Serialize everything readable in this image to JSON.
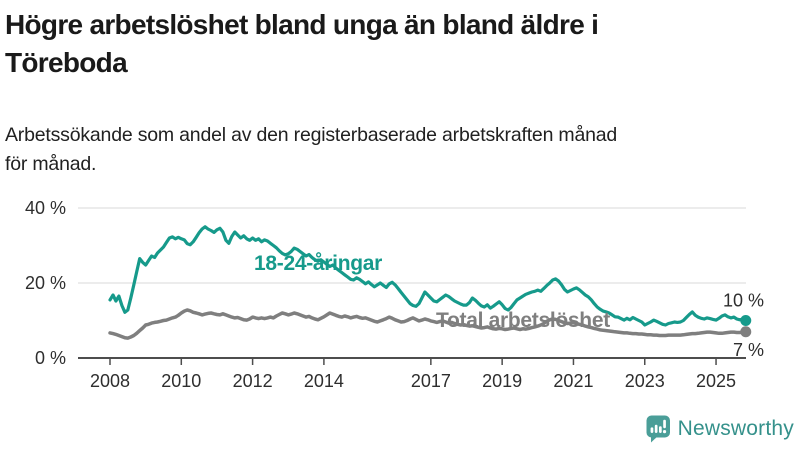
{
  "title": {
    "line1": "Högre arbetslöshet bland unga än bland äldre i",
    "line2": "Töreboda"
  },
  "subtitle": {
    "line1": "Arbetssökande som andel av den registerbaserade arbetskraften månad",
    "line2": "för månad."
  },
  "colors": {
    "young_teal": "#169a8b",
    "total_gray": "#7f7f7f",
    "axis_text": "#2e2e2e",
    "gridline": "#d8d8d8",
    "axis_line": "#4d4d4d",
    "logo_icon": "#4a9e98",
    "logo_text": "#35918b"
  },
  "chart_data": {
    "type": "line",
    "x_unit": "month",
    "x_start": "2008-01",
    "x_end": "2025-11",
    "ylim": [
      0,
      40
    ],
    "grid": "horizontal",
    "yticks": [
      {
        "value": 0,
        "label": "0 %"
      },
      {
        "value": 20,
        "label": "20 %"
      },
      {
        "value": 40,
        "label": "40 %"
      }
    ],
    "xticks": [
      {
        "year": 2008,
        "label": "2008"
      },
      {
        "year": 2010,
        "label": "2010"
      },
      {
        "year": 2012,
        "label": "2012"
      },
      {
        "year": 2014,
        "label": "2014"
      },
      {
        "year": 2017,
        "label": "2017"
      },
      {
        "year": 2019,
        "label": "2019"
      },
      {
        "year": 2021,
        "label": "2021"
      },
      {
        "year": 2023,
        "label": "2023"
      },
      {
        "year": 2025,
        "label": "2025"
      }
    ],
    "series": [
      {
        "id": "young",
        "name": "18-24-åringar",
        "color": "#169a8b",
        "end_label": "10 %",
        "end_label_side": "above",
        "values": [
          15.5,
          16.8,
          15.2,
          16.5,
          14.0,
          12.2,
          12.8,
          16.0,
          19.5,
          23.0,
          26.5,
          25.5,
          24.8,
          26.0,
          27.2,
          26.8,
          28.0,
          28.8,
          29.6,
          30.8,
          32.0,
          32.3,
          31.8,
          32.2,
          31.8,
          31.5,
          30.5,
          30.2,
          31.0,
          32.2,
          33.4,
          34.4,
          35.0,
          34.4,
          34.0,
          33.5,
          34.2,
          34.6,
          33.6,
          31.4,
          30.6,
          32.4,
          33.6,
          32.8,
          32.0,
          32.6,
          31.8,
          31.4,
          32.0,
          31.4,
          31.8,
          31.0,
          31.5,
          31.2,
          30.6,
          30.0,
          29.4,
          28.6,
          27.9,
          27.5,
          27.8,
          28.4,
          29.3,
          29.0,
          28.4,
          27.8,
          27.2,
          27.6,
          26.8,
          26.2,
          25.8,
          26.2,
          25.6,
          25.0,
          24.4,
          24.8,
          24.0,
          23.4,
          22.8,
          22.2,
          21.6,
          21.0,
          20.8,
          21.4,
          21.0,
          20.4,
          19.8,
          20.3,
          19.6,
          19.0,
          19.5,
          20.0,
          19.4,
          18.8,
          19.8,
          20.2,
          19.5,
          18.5,
          17.5,
          16.5,
          15.5,
          14.5,
          14.0,
          13.8,
          14.5,
          16.0,
          17.6,
          16.8,
          16.0,
          15.2,
          15.0,
          15.6,
          16.2,
          16.8,
          16.4,
          15.8,
          15.2,
          14.8,
          14.4,
          14.1,
          14.1,
          14.8,
          16.0,
          15.4,
          14.6,
          13.9,
          13.6,
          14.2,
          13.3,
          13.8,
          14.4,
          15.0,
          14.2,
          13.2,
          12.8,
          13.5,
          14.5,
          15.5,
          16.0,
          16.5,
          17.0,
          17.3,
          17.6,
          17.8,
          18.1,
          17.8,
          18.5,
          19.3,
          20.0,
          20.8,
          21.1,
          20.5,
          19.5,
          18.3,
          17.6,
          18.0,
          18.4,
          18.7,
          18.2,
          17.5,
          16.8,
          16.3,
          15.5,
          14.5,
          13.6,
          13.0,
          12.5,
          12.3,
          12.0,
          11.5,
          11.0,
          10.9,
          10.5,
          10.1,
          10.6,
          10.2,
          10.8,
          10.4,
          10.0,
          9.6,
          8.8,
          9.2,
          9.6,
          10.1,
          9.8,
          9.4,
          9.0,
          8.8,
          9.2,
          9.4,
          9.6,
          9.5,
          9.6,
          10.0,
          10.8,
          11.6,
          12.3,
          11.4,
          10.9,
          10.6,
          10.4,
          10.7,
          10.5,
          10.3,
          10.1,
          10.6,
          11.2,
          11.5,
          11.0,
          10.7,
          10.9,
          10.4,
          10.2,
          10.4,
          10.0
        ]
      },
      {
        "id": "total",
        "name": "Total arbetslöshet",
        "color": "#7f7f7f",
        "end_label": "7 %",
        "end_label_side": "below",
        "values": [
          6.7,
          6.5,
          6.3,
          6.0,
          5.7,
          5.4,
          5.3,
          5.6,
          6.0,
          6.6,
          7.3,
          8.0,
          8.8,
          9.0,
          9.3,
          9.5,
          9.6,
          9.8,
          10.0,
          10.1,
          10.4,
          10.7,
          10.9,
          11.4,
          12.0,
          12.5,
          12.8,
          12.6,
          12.2,
          12.0,
          11.8,
          11.5,
          11.7,
          11.9,
          12.0,
          11.8,
          11.6,
          11.5,
          11.8,
          11.5,
          11.2,
          10.9,
          10.7,
          10.8,
          10.5,
          10.2,
          10.1,
          10.4,
          10.9,
          10.7,
          10.5,
          10.7,
          10.5,
          10.7,
          10.9,
          10.7,
          11.2,
          11.6,
          12.0,
          11.8,
          11.5,
          11.7,
          12.0,
          11.8,
          11.5,
          11.2,
          10.9,
          11.1,
          10.7,
          10.4,
          10.2,
          10.6,
          11.0,
          11.5,
          12.0,
          11.7,
          11.4,
          11.1,
          10.9,
          11.2,
          11.0,
          10.7,
          10.9,
          11.1,
          10.8,
          10.6,
          10.7,
          10.4,
          10.1,
          9.8,
          9.6,
          9.9,
          10.2,
          10.5,
          10.9,
          10.6,
          10.2,
          9.9,
          9.6,
          9.7,
          10.0,
          10.4,
          10.7,
          10.3,
          9.9,
          10.1,
          10.4,
          10.2,
          9.9,
          9.7,
          9.5,
          9.7,
          9.9,
          9.6,
          9.3,
          9.5,
          9.2,
          9.0,
          8.8,
          8.9,
          8.7,
          8.5,
          8.6,
          8.4,
          8.2,
          8.0,
          8.1,
          8.3,
          8.0,
          7.8,
          7.7,
          7.9,
          7.8,
          7.6,
          7.7,
          7.9,
          8.0,
          7.8,
          7.6,
          7.8,
          7.7,
          7.9,
          8.1,
          8.3,
          8.5,
          8.8,
          9.2,
          9.8,
          10.2,
          10.4,
          10.3,
          10.0,
          9.7,
          9.4,
          9.2,
          9.3,
          9.4,
          9.2,
          9.0,
          8.8,
          8.5,
          8.3,
          8.1,
          7.9,
          7.7,
          7.5,
          7.4,
          7.3,
          7.2,
          7.1,
          7.0,
          6.9,
          6.8,
          6.7,
          6.7,
          6.6,
          6.5,
          6.5,
          6.4,
          6.4,
          6.3,
          6.2,
          6.2,
          6.1,
          6.1,
          6.0,
          6.0,
          6.0,
          6.1,
          6.1,
          6.1,
          6.1,
          6.1,
          6.2,
          6.3,
          6.4,
          6.5,
          6.5,
          6.6,
          6.7,
          6.8,
          6.9,
          6.9,
          6.8,
          6.7,
          6.6,
          6.6,
          6.7,
          6.8,
          6.9,
          6.9,
          6.8,
          6.8,
          6.9,
          7.0
        ]
      }
    ]
  },
  "branding": {
    "logo_text": "Newsworthy",
    "logo_icon": "bar-chart-speech-bubble-icon"
  }
}
